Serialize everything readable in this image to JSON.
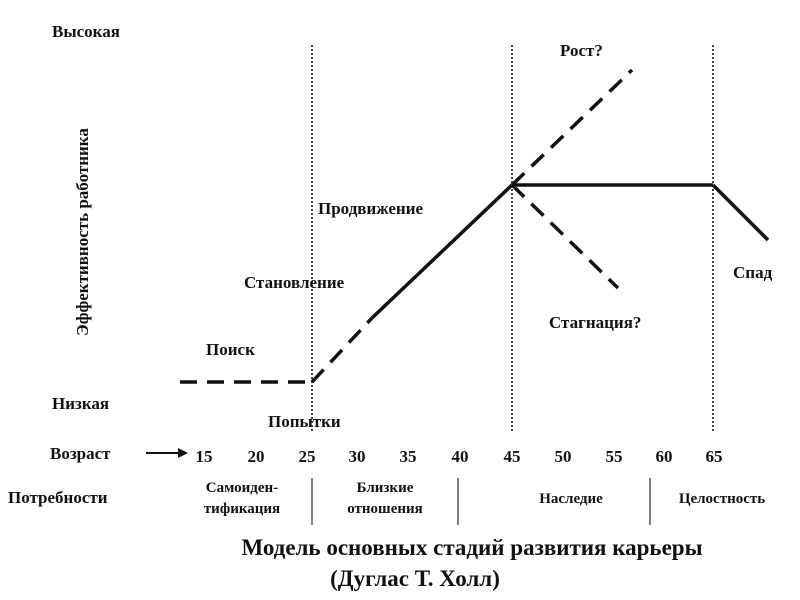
{
  "ylabel": "Эффективность работника",
  "y_high": "Высокая",
  "y_low": "Низкая",
  "age_label": "Возраст",
  "ages": [
    "15",
    "20",
    "25",
    "30",
    "35",
    "40",
    "45",
    "50",
    "55",
    "60",
    "65"
  ],
  "needs_label": "Потребности",
  "needs": [
    {
      "line1": "Самоиден-",
      "line2": "тификация"
    },
    {
      "line1": "Близкие",
      "line2": "отношения"
    },
    {
      "line1": "Наследие",
      "line2": ""
    },
    {
      "line1": "Целостность",
      "line2": ""
    }
  ],
  "stages": {
    "poisk": "Поиск",
    "popytki": "Попытки",
    "stanovlenie": "Становление",
    "prodvizhenie": "Продвижение",
    "rost": "Рост?",
    "stagnatsiya": "Стагнация?",
    "spad": "Спад"
  },
  "caption": {
    "line1": "Модель основных стадий развития карьеры",
    "line2": "(Дуглас Т. Холл)"
  },
  "colors": {
    "ink": "#111111",
    "background": "#ffffff"
  }
}
